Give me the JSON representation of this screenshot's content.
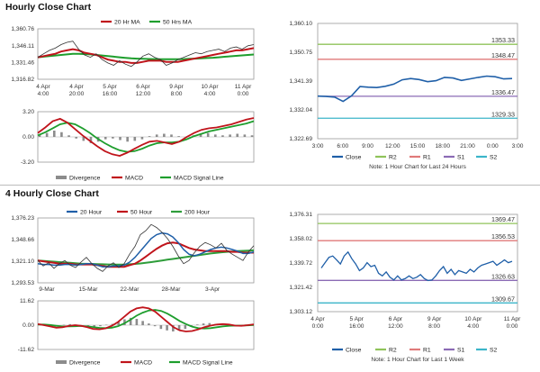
{
  "sections": {
    "hourly_title": "Hourly Close Chart",
    "four_hourly_title": "4 Hourly Close Chart"
  },
  "colors": {
    "close": "#1f5fa8",
    "ma_short": "#c0141b",
    "ma_long": "#1e9e2d",
    "r2": "#8fc35a",
    "r1": "#e07a7a",
    "s1": "#8b6bb5",
    "s2": "#3bb5c9",
    "divergence": "#8c8c8c",
    "macd": "#c0141b",
    "signal": "#1e9e2d",
    "price_ma_long_4h": "#2e9d3a"
  },
  "chart_data": [
    {
      "id": "hourly-price",
      "type": "line",
      "x_tick_labels": [
        [
          "4 Apr",
          "4:00"
        ],
        [
          "4 Apr",
          "20:00"
        ],
        [
          "5 Apr",
          "16:00"
        ],
        [
          "6 Apr",
          "12:00"
        ],
        [
          "9 Apr",
          "8:00"
        ],
        [
          "10 Apr",
          "4:00"
        ],
        [
          "11 Apr",
          "0:00"
        ]
      ],
      "y_tick_labels": [
        "1,360.76",
        "1,346.11",
        "1,331.46",
        "1,316.82"
      ],
      "ylim": [
        1316.82,
        1360.76
      ],
      "legend": [
        "20 Hr MA",
        "50 Hrs MA"
      ],
      "series": [
        {
          "name": "Close",
          "values": [
            1336,
            1339,
            1342,
            1344,
            1347,
            1349,
            1350,
            1343,
            1338,
            1336,
            1339,
            1334,
            1331,
            1329,
            1333,
            1330,
            1328,
            1332,
            1337,
            1339,
            1336,
            1334,
            1329,
            1331,
            1334,
            1336,
            1338,
            1340,
            1339,
            1341,
            1342,
            1343,
            1341,
            1344,
            1345,
            1343,
            1346,
            1347
          ]
        },
        {
          "name": "20 Hr MA",
          "values": [
            1336,
            1337,
            1338,
            1339,
            1341,
            1342,
            1343,
            1342,
            1340,
            1339,
            1338,
            1336,
            1334,
            1333,
            1332,
            1332,
            1331,
            1331,
            1332,
            1333,
            1333,
            1333,
            1332,
            1332,
            1332,
            1333,
            1334,
            1335,
            1336,
            1337,
            1338,
            1339,
            1340,
            1341,
            1342,
            1342,
            1343,
            1344
          ]
        },
        {
          "name": "50 Hrs MA",
          "values": [
            1336,
            1336.5,
            1337,
            1337.5,
            1338,
            1338.5,
            1339,
            1339,
            1338.8,
            1338.5,
            1338,
            1337.5,
            1337,
            1336.5,
            1336,
            1335.5,
            1335,
            1334.8,
            1334.6,
            1334.5,
            1334.4,
            1334.3,
            1334.2,
            1334.2,
            1334.3,
            1334.4,
            1334.6,
            1334.8,
            1335,
            1335.3,
            1335.6,
            1336,
            1336.4,
            1336.8,
            1337.2,
            1337.6,
            1338,
            1338.4
          ]
        }
      ]
    },
    {
      "id": "hourly-macd",
      "type": "line",
      "y_tick_labels": [
        "3.20",
        "0.00",
        "-3.20"
      ],
      "ylim": [
        -3.2,
        3.2
      ],
      "legend": [
        "Divergence",
        "MACD",
        "MACD Signal Line"
      ],
      "series": [
        {
          "name": "Divergence",
          "values": [
            0.3,
            0.5,
            0.8,
            0.6,
            0.2,
            -0.2,
            -0.5,
            -0.8,
            -0.6,
            -0.3,
            -0.2,
            -0.4,
            -0.6,
            -0.5,
            -0.3,
            0.1,
            0.3,
            0.4,
            0.3,
            0.1,
            -0.1,
            0.2,
            0.4,
            0.5,
            0.3,
            0.2,
            0.3,
            0.4,
            0.3,
            0.2
          ]
        },
        {
          "name": "MACD",
          "values": [
            0.5,
            1.2,
            2.0,
            2.3,
            1.8,
            1.0,
            0.2,
            -0.5,
            -1.2,
            -1.8,
            -2.2,
            -2.4,
            -2.0,
            -1.5,
            -1.0,
            -0.6,
            -0.5,
            -0.7,
            -0.9,
            -0.6,
            0.0,
            0.5,
            0.9,
            1.1,
            1.2,
            1.4,
            1.6,
            1.9,
            2.2,
            2.4
          ]
        },
        {
          "name": "MACD Signal Line",
          "values": [
            0.2,
            0.6,
            1.1,
            1.6,
            1.8,
            1.6,
            1.1,
            0.5,
            -0.2,
            -0.8,
            -1.3,
            -1.7,
            -1.9,
            -1.8,
            -1.5,
            -1.1,
            -0.8,
            -0.7,
            -0.7,
            -0.6,
            -0.3,
            0.1,
            0.4,
            0.7,
            0.9,
            1.1,
            1.3,
            1.5,
            1.7,
            2.0
          ]
        }
      ]
    },
    {
      "id": "hourly-levels",
      "type": "line",
      "x_tick_labels": [
        "3:00",
        "6:00",
        "9:00",
        "12:00",
        "15:00",
        "18:00",
        "21:00",
        "0:00",
        "3:00"
      ],
      "y_tick_labels": [
        "1,360.10",
        "1,350.75",
        "1,341.39",
        "1,332.04",
        "1,322.69"
      ],
      "ylim": [
        1322.69,
        1360.1
      ],
      "levels": [
        {
          "name": "R2",
          "value": 1353.33,
          "label": "1353.33"
        },
        {
          "name": "R1",
          "value": 1348.47,
          "label": "1348.47"
        },
        {
          "name": "S1",
          "value": 1336.47,
          "label": "1336.47"
        },
        {
          "name": "S2",
          "value": 1329.33,
          "label": "1329.33"
        }
      ],
      "legend": [
        "Close",
        "R2",
        "R1",
        "S1",
        "S2"
      ],
      "note": "Note: 1 Hour Chart for Last 24 Hours",
      "series": [
        {
          "name": "Close",
          "values": [
            1336.5,
            1336.4,
            1336.2,
            1334.8,
            1336.6,
            1339.6,
            1339.4,
            1339.3,
            1339.7,
            1340.4,
            1341.8,
            1342.2,
            1341.9,
            1341.2,
            1341.5,
            1342.6,
            1342.4,
            1341.6,
            1342.1,
            1342.6,
            1343.0,
            1342.8,
            1342.1,
            1342.2
          ]
        }
      ]
    },
    {
      "id": "four-hourly-price",
      "type": "line",
      "x_tick_labels": [
        "9-Mar",
        "15-Mar",
        "22-Mar",
        "28-Mar",
        "3-Apr"
      ],
      "y_tick_labels": [
        "1,376.23",
        "1,348.66",
        "1,321.10",
        "1,293.53"
      ],
      "ylim": [
        1293.53,
        1376.23
      ],
      "legend": [
        "20 Hour",
        "50 Hour",
        "200 Hour"
      ],
      "series": [
        {
          "name": "Close",
          "values": [
            1322,
            1315,
            1319,
            1312,
            1318,
            1322,
            1316,
            1313,
            1320,
            1326,
            1318,
            1312,
            1308,
            1315,
            1319,
            1313,
            1318,
            1330,
            1340,
            1355,
            1360,
            1368,
            1364,
            1358,
            1350,
            1340,
            1328,
            1318,
            1322,
            1332,
            1340,
            1345,
            1342,
            1338,
            1344,
            1335,
            1330,
            1326,
            1322,
            1333,
            1341
          ]
        },
        {
          "name": "20 Hour",
          "values": [
            1318,
            1317,
            1317,
            1316,
            1316,
            1317,
            1317,
            1316,
            1317,
            1318,
            1318,
            1316,
            1314,
            1314,
            1315,
            1315,
            1316,
            1320,
            1326,
            1334,
            1342,
            1350,
            1355,
            1357,
            1356,
            1352,
            1345,
            1336,
            1330,
            1328,
            1330,
            1333,
            1336,
            1338,
            1339,
            1338,
            1336,
            1334,
            1331,
            1331,
            1333
          ]
        },
        {
          "name": "50 Hour",
          "values": [
            1322,
            1321,
            1320,
            1319,
            1318,
            1318,
            1318,
            1317,
            1317,
            1317,
            1317,
            1316,
            1315,
            1314,
            1314,
            1314,
            1314,
            1316,
            1318,
            1322,
            1327,
            1332,
            1337,
            1341,
            1344,
            1345,
            1344,
            1341,
            1338,
            1336,
            1335,
            1334,
            1334,
            1334,
            1334,
            1334,
            1333,
            1333,
            1332,
            1332,
            1332
          ]
        },
        {
          "name": "200 Hour",
          "values": [
            1322,
            1321.5,
            1321,
            1320.5,
            1320,
            1319.5,
            1319,
            1318.5,
            1318,
            1317.8,
            1317.6,
            1317.4,
            1317.2,
            1317,
            1316.8,
            1316.8,
            1316.9,
            1317.2,
            1317.6,
            1318.2,
            1319,
            1320,
            1321,
            1322,
            1323,
            1324,
            1325,
            1326,
            1327,
            1328,
            1329,
            1330,
            1331,
            1331.8,
            1332.5,
            1333,
            1333.5,
            1334,
            1334.3,
            1334.6,
            1335
          ]
        }
      ]
    },
    {
      "id": "four-hourly-macd",
      "type": "line",
      "y_tick_labels": [
        "11.62",
        "0.00",
        "-11.62"
      ],
      "ylim": [
        -11.62,
        11.62
      ],
      "legend": [
        "Divergence",
        "MACD",
        "MACD Signal Line"
      ],
      "series": [
        {
          "name": "Divergence",
          "values": [
            0.2,
            -0.3,
            -0.5,
            -0.4,
            0.2,
            0.5,
            0.3,
            -0.2,
            -0.6,
            -0.8,
            -0.5,
            0.2,
            0.6,
            1.5,
            2.8,
            3.5,
            3.0,
            2.0,
            0.8,
            -0.5,
            -1.8,
            -2.5,
            -3.0,
            -2.6,
            -1.8,
            -0.8,
            0.3,
            0.8,
            1.0,
            0.6,
            0.2,
            -0.2,
            -0.5,
            -0.3,
            0.1,
            0.3
          ]
        },
        {
          "name": "MACD",
          "values": [
            0.5,
            0.0,
            -0.6,
            -1.2,
            -1.0,
            -0.4,
            0.0,
            -0.3,
            -1.0,
            -1.8,
            -2.0,
            -1.5,
            -0.3,
            1.5,
            4.0,
            6.5,
            8.0,
            8.5,
            8.0,
            6.5,
            4.0,
            1.5,
            -1.0,
            -2.5,
            -3.0,
            -2.8,
            -2.0,
            -1.0,
            -0.2,
            0.3,
            0.5,
            0.3,
            -0.2,
            -0.3,
            0.0,
            0.4
          ]
        },
        {
          "name": "MACD Signal Line",
          "values": [
            0.3,
            0.3,
            0.1,
            -0.3,
            -0.6,
            -0.6,
            -0.5,
            -0.4,
            -0.6,
            -0.9,
            -1.3,
            -1.4,
            -1.2,
            -0.5,
            0.8,
            2.6,
            4.5,
            6.0,
            7.0,
            7.3,
            6.8,
            5.5,
            3.8,
            2.0,
            0.5,
            -0.7,
            -1.4,
            -1.6,
            -1.4,
            -1.0,
            -0.6,
            -0.3,
            -0.2,
            -0.2,
            -0.1,
            0.1
          ]
        }
      ]
    },
    {
      "id": "four-hourly-levels",
      "type": "line",
      "x_tick_labels": [
        [
          "4 Apr",
          "0:00"
        ],
        [
          "5 Apr",
          "16:00"
        ],
        [
          "6 Apr",
          "12:00"
        ],
        [
          "9 Apr",
          "8:00"
        ],
        [
          "10 Apr",
          "4:00"
        ],
        [
          "11 Apr",
          "0:00"
        ]
      ],
      "y_tick_labels": [
        "1,376.31",
        "1,358.02",
        "1,339.72",
        "1,321.42",
        "1,303.12"
      ],
      "ylim": [
        1303.12,
        1376.31
      ],
      "levels": [
        {
          "name": "R2",
          "value": 1369.47,
          "label": "1369.47"
        },
        {
          "name": "R1",
          "value": 1356.53,
          "label": "1356.53"
        },
        {
          "name": "S1",
          "value": 1326.63,
          "label": "1326.63"
        },
        {
          "name": "S2",
          "value": 1309.67,
          "label": "1309.67"
        }
      ],
      "legend": [
        "Close",
        "R2",
        "R1",
        "S1",
        "S2"
      ],
      "note": "Note: 1 Hour Chart for Last 1 Week",
      "series": [
        {
          "name": "Close",
          "values": [
            1336,
            1340,
            1344,
            1345,
            1342,
            1339,
            1345,
            1348,
            1343,
            1339,
            1334,
            1336,
            1340,
            1337,
            1338,
            1332,
            1330,
            1333,
            1329,
            1327,
            1330,
            1327,
            1328,
            1330,
            1328,
            1329,
            1331,
            1328,
            1326.6,
            1327,
            1330,
            1334,
            1337,
            1332,
            1335,
            1331,
            1334,
            1333,
            1332,
            1335,
            1333,
            1336,
            1338,
            1339,
            1340,
            1341,
            1338,
            1340,
            1342,
            1340,
            1341
          ]
        }
      ]
    }
  ]
}
